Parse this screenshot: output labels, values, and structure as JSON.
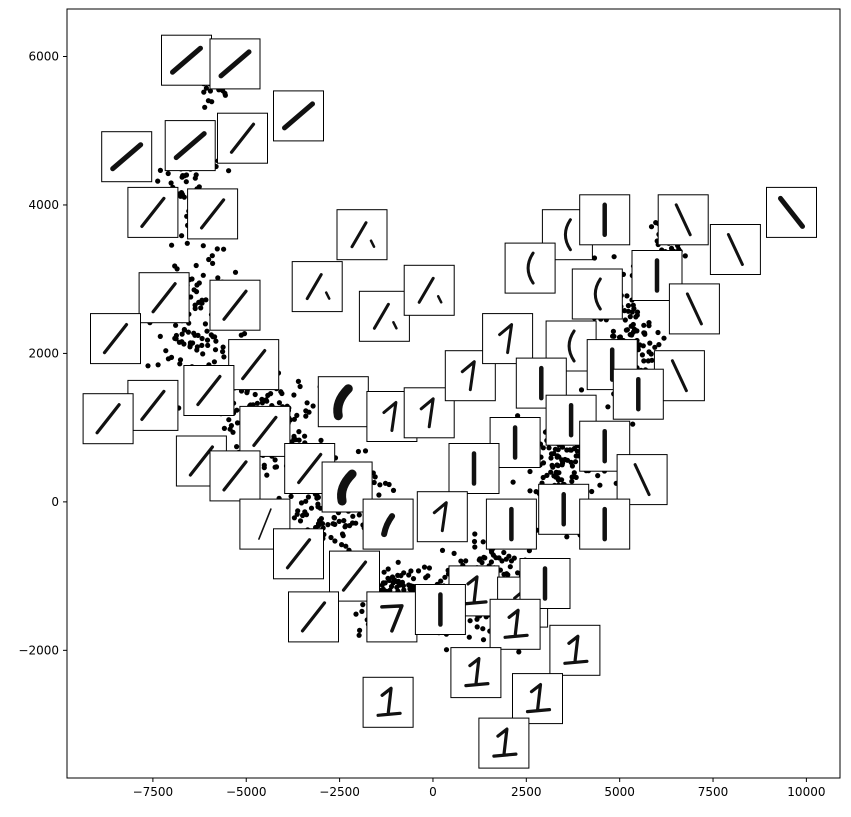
{
  "chart_data": {
    "type": "scatter",
    "title": "",
    "xlabel": "",
    "ylabel": "",
    "xlim": [
      -9800,
      10900
    ],
    "ylim": [
      -3720,
      6640
    ],
    "x_ticks": [
      -7500,
      -5000,
      -2500,
      0,
      2500,
      5000,
      7500,
      10000
    ],
    "x_tick_labels": [
      "−7500",
      "−5000",
      "−2500",
      "0",
      "2500",
      "5000",
      "7500",
      "10000"
    ],
    "y_ticks": [
      -2000,
      0,
      2000,
      4000,
      6000
    ],
    "y_tick_labels": [
      "−2000",
      "0",
      "2000",
      "4000",
      "6000"
    ],
    "grid": false,
    "legend": "none",
    "point_color": "#000000",
    "thumbnail_frame_color": "#000000",
    "points_description_clusters": [
      {
        "center": [
          -6000,
          5600
        ],
        "spread": [
          700,
          350
        ],
        "count": 25
      },
      {
        "center": [
          -6500,
          4200
        ],
        "spread": [
          900,
          700
        ],
        "count": 60
      },
      {
        "center": [
          -6200,
          2300
        ],
        "spread": [
          1100,
          900
        ],
        "count": 120
      },
      {
        "center": [
          -4500,
          1000
        ],
        "spread": [
          1200,
          700
        ],
        "count": 160
      },
      {
        "center": [
          -2500,
          0
        ],
        "spread": [
          1300,
          700
        ],
        "count": 180
      },
      {
        "center": [
          -1000,
          -1300
        ],
        "spread": [
          1100,
          500
        ],
        "count": 160
      },
      {
        "center": [
          1500,
          -1100
        ],
        "spread": [
          1300,
          700
        ],
        "count": 180
      },
      {
        "center": [
          3500,
          400
        ],
        "spread": [
          1000,
          900
        ],
        "count": 180
      },
      {
        "center": [
          5200,
          2300
        ],
        "spread": [
          900,
          1000
        ],
        "count": 130
      },
      {
        "center": [
          6300,
          3500
        ],
        "spread": [
          600,
          500
        ],
        "count": 40
      }
    ],
    "thumbnails": [
      {
        "x": -6600,
        "y": 5950,
        "digit": "slash-dark"
      },
      {
        "x": -5300,
        "y": 5900,
        "digit": "slash-dark"
      },
      {
        "x": -3600,
        "y": 5200,
        "digit": "slash-dark"
      },
      {
        "x": -6500,
        "y": 4800,
        "digit": "slash-dark"
      },
      {
        "x": -5100,
        "y": 4900,
        "digit": "slash"
      },
      {
        "x": -8200,
        "y": 4650,
        "digit": "slash-dark"
      },
      {
        "x": -7500,
        "y": 3900,
        "digit": "slash"
      },
      {
        "x": -5900,
        "y": 3880,
        "digit": "slash"
      },
      {
        "x": -1900,
        "y": 3600,
        "digit": "slash-dot"
      },
      {
        "x": -3100,
        "y": 2900,
        "digit": "slash-dot"
      },
      {
        "x": -7200,
        "y": 2750,
        "digit": "slash"
      },
      {
        "x": -5300,
        "y": 2650,
        "digit": "slash"
      },
      {
        "x": -1300,
        "y": 2500,
        "digit": "slash-dot"
      },
      {
        "x": -100,
        "y": 2850,
        "digit": "slash-dot"
      },
      {
        "x": -8500,
        "y": 2200,
        "digit": "slash"
      },
      {
        "x": -4800,
        "y": 1850,
        "digit": "slash"
      },
      {
        "x": -6000,
        "y": 1500,
        "digit": "slash"
      },
      {
        "x": -7500,
        "y": 1300,
        "digit": "slash"
      },
      {
        "x": -8700,
        "y": 1120,
        "digit": "slash"
      },
      {
        "x": -2400,
        "y": 1350,
        "digit": "blob"
      },
      {
        "x": -1100,
        "y": 1150,
        "digit": "one-flag"
      },
      {
        "x": -100,
        "y": 1200,
        "digit": "one-flag"
      },
      {
        "x": -4500,
        "y": 950,
        "digit": "slash"
      },
      {
        "x": 1000,
        "y": 1700,
        "digit": "one-flag"
      },
      {
        "x": 2000,
        "y": 2200,
        "digit": "one-flag"
      },
      {
        "x": 3600,
        "y": 3600,
        "digit": "arc"
      },
      {
        "x": 2600,
        "y": 3150,
        "digit": "arc"
      },
      {
        "x": 4600,
        "y": 3800,
        "digit": "bar"
      },
      {
        "x": 6700,
        "y": 3800,
        "digit": "backslash"
      },
      {
        "x": 8100,
        "y": 3400,
        "digit": "backslash"
      },
      {
        "x": 9600,
        "y": 3900,
        "digit": "backslash-dark"
      },
      {
        "x": 4400,
        "y": 2800,
        "digit": "arc"
      },
      {
        "x": 6000,
        "y": 3050,
        "digit": "bar"
      },
      {
        "x": 7000,
        "y": 2600,
        "digit": "backslash"
      },
      {
        "x": 3700,
        "y": 2100,
        "digit": "arc"
      },
      {
        "x": 4800,
        "y": 1850,
        "digit": "bar"
      },
      {
        "x": 6600,
        "y": 1700,
        "digit": "backslash"
      },
      {
        "x": 2900,
        "y": 1600,
        "digit": "bar"
      },
      {
        "x": 5500,
        "y": 1450,
        "digit": "bar"
      },
      {
        "x": 3700,
        "y": 1100,
        "digit": "bar"
      },
      {
        "x": 2200,
        "y": 800,
        "digit": "bar"
      },
      {
        "x": 4600,
        "y": 750,
        "digit": "bar"
      },
      {
        "x": 1100,
        "y": 450,
        "digit": "bar"
      },
      {
        "x": 5600,
        "y": 300,
        "digit": "backslash"
      },
      {
        "x": -6200,
        "y": 550,
        "digit": "slash"
      },
      {
        "x": -5300,
        "y": 350,
        "digit": "slash"
      },
      {
        "x": -3300,
        "y": 450,
        "digit": "slash"
      },
      {
        "x": -2300,
        "y": 200,
        "digit": "blob"
      },
      {
        "x": -4500,
        "y": -300,
        "digit": "slash-thin"
      },
      {
        "x": -1200,
        "y": -300,
        "digit": "blob-small"
      },
      {
        "x": 250,
        "y": -200,
        "digit": "one-flag"
      },
      {
        "x": 2100,
        "y": -300,
        "digit": "bar"
      },
      {
        "x": 3500,
        "y": -100,
        "digit": "bar"
      },
      {
        "x": 4600,
        "y": -300,
        "digit": "bar"
      },
      {
        "x": -3600,
        "y": -700,
        "digit": "slash"
      },
      {
        "x": -2100,
        "y": -1000,
        "digit": "slash"
      },
      {
        "x": 1100,
        "y": -1200,
        "digit": "one-base"
      },
      {
        "x": 2400,
        "y": -1350,
        "digit": "one-flag"
      },
      {
        "x": 3000,
        "y": -1100,
        "digit": "bar"
      },
      {
        "x": -3200,
        "y": -1550,
        "digit": "slash"
      },
      {
        "x": -1100,
        "y": -1550,
        "digit": "seven"
      },
      {
        "x": 200,
        "y": -1450,
        "digit": "bar"
      },
      {
        "x": 2200,
        "y": -1650,
        "digit": "one-base"
      },
      {
        "x": 3800,
        "y": -2000,
        "digit": "one-base"
      },
      {
        "x": 1150,
        "y": -2300,
        "digit": "one-base"
      },
      {
        "x": 2800,
        "y": -2650,
        "digit": "one-base"
      },
      {
        "x": -1200,
        "y": -2700,
        "digit": "one-base"
      },
      {
        "x": 1900,
        "y": -3250,
        "digit": "one-base"
      }
    ]
  }
}
